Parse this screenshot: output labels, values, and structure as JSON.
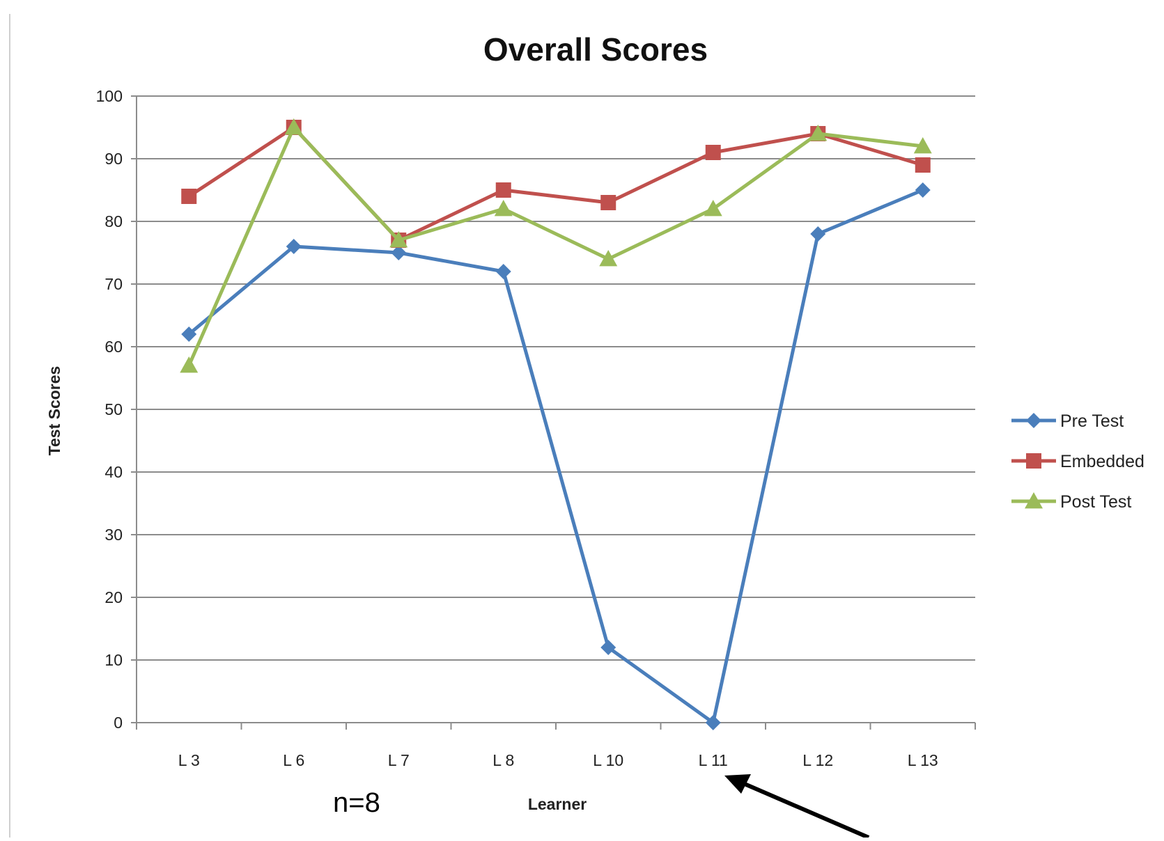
{
  "chart_data": {
    "type": "line",
    "title": "Overall Scores",
    "xlabel": "Learner",
    "ylabel": "Test Scores",
    "categories": [
      "L 3",
      "L 6",
      "L 7",
      "L 8",
      "L 10",
      "L 11",
      "L 12",
      "L 13"
    ],
    "ylim": [
      0,
      100
    ],
    "yticks": [
      0,
      10,
      20,
      30,
      40,
      50,
      60,
      70,
      80,
      90,
      100
    ],
    "grid": true,
    "legend_position": "right",
    "series": [
      {
        "name": "Pre Test",
        "color": "#4a7ebb",
        "marker": "diamond",
        "values": [
          62,
          76,
          75,
          72,
          12,
          0,
          78,
          85
        ]
      },
      {
        "name": "Embedded",
        "color": "#c0504d",
        "marker": "square",
        "values": [
          84,
          95,
          77,
          85,
          83,
          91,
          94,
          89
        ]
      },
      {
        "name": "Post Test",
        "color": "#9bbb59",
        "marker": "triangle",
        "values": [
          57,
          95,
          77,
          82,
          74,
          82,
          94,
          92
        ]
      }
    ],
    "annotations": [
      {
        "text": "n=8"
      }
    ]
  }
}
